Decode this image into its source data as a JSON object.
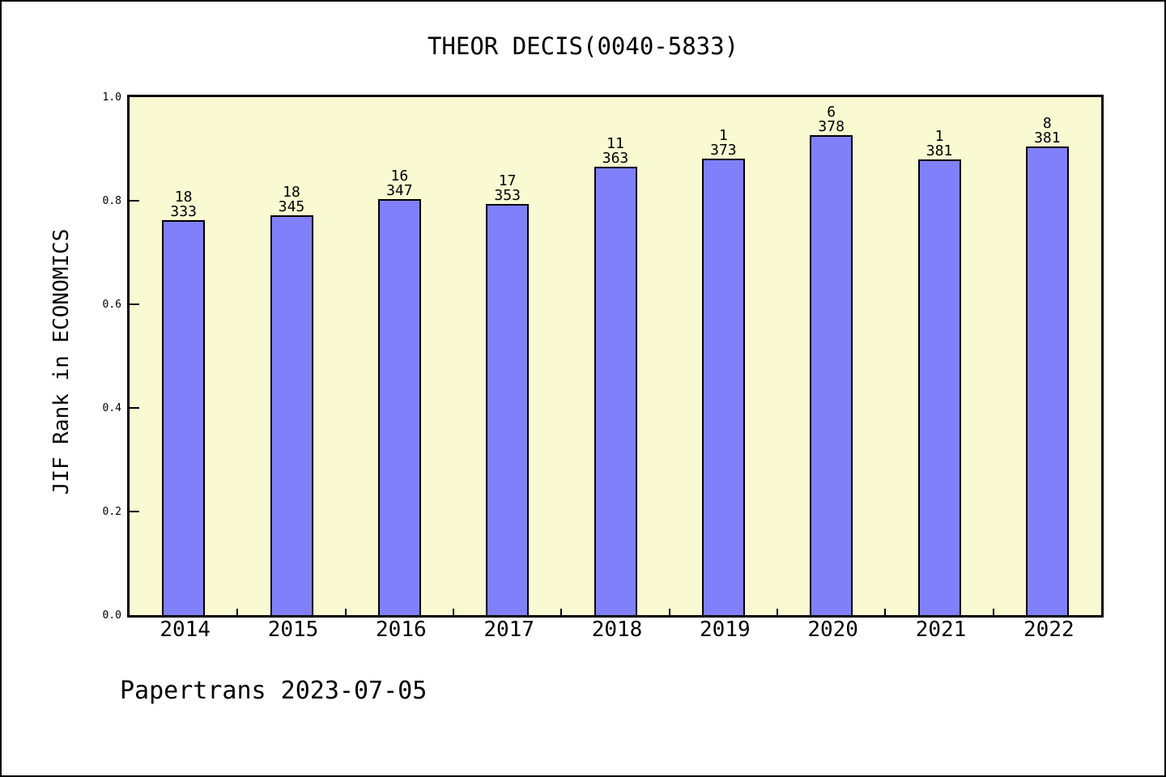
{
  "title": "THEOR DECIS(0040-5833)",
  "footer": "Papertrans 2023-07-05",
  "colors": {
    "bar_fill": "#8080FA",
    "bar_edge": "#000000",
    "plot_background": "#FAFAD2",
    "page_background": "#FFFFFF",
    "text": "#000000"
  },
  "chart_data": {
    "type": "bar",
    "title": "THEOR DECIS(0040-5833)",
    "xlabel": "",
    "ylabel": "JIF Rank in ECONOMICS",
    "ylim": [
      0.0,
      1.0
    ],
    "ytick_labels": [
      "0.0",
      "0.2",
      "0.4",
      "0.6",
      "0.8",
      "1.0"
    ],
    "grid": false,
    "legend": null,
    "categories": [
      "2014",
      "2015",
      "2016",
      "2017",
      "2018",
      "2019",
      "2020",
      "2021",
      "2022"
    ],
    "values": [
      0.762,
      0.772,
      0.803,
      0.794,
      0.866,
      0.881,
      0.927,
      0.88,
      0.905
    ],
    "bar_annotations": {
      "ranks": [
        18,
        18,
        16,
        17,
        11,
        1,
        6,
        1,
        8
      ],
      "totals": [
        333,
        345,
        347,
        353,
        363,
        373,
        378,
        381,
        381
      ]
    }
  }
}
